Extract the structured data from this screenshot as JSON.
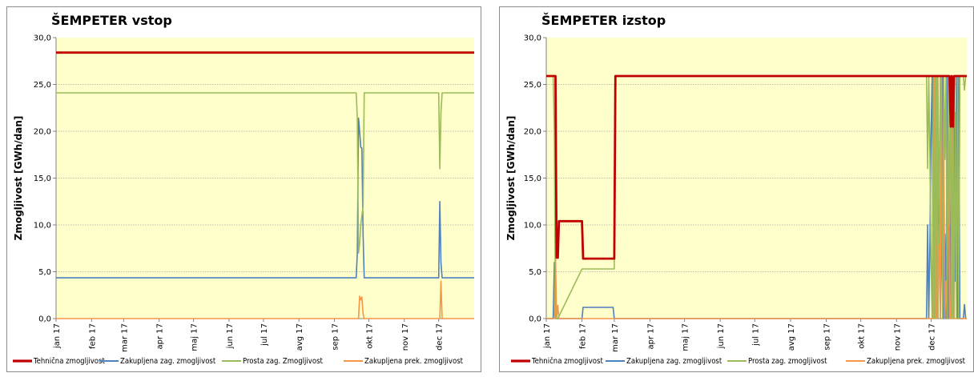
{
  "chart_data": [
    {
      "type": "line",
      "title": "ŠEMPETER vstop",
      "xlabel": "",
      "ylabel": "Zmogljivost [GWh/dan]",
      "ylim": [
        0,
        30
      ],
      "yticks": [
        "0,0",
        "5,0",
        "10,0",
        "15,0",
        "20,0",
        "25,0",
        "30,0"
      ],
      "xlim": [
        0,
        365
      ],
      "xticks": [
        {
          "label": "jan 17",
          "x": 0
        },
        {
          "label": "feb 17",
          "x": 31
        },
        {
          "label": "mar 17",
          "x": 59
        },
        {
          "label": "apr 17",
          "x": 90
        },
        {
          "label": "maj 17",
          "x": 120
        },
        {
          "label": "jun 17",
          "x": 151
        },
        {
          "label": "jul 17",
          "x": 181
        },
        {
          "label": "avg 17",
          "x": 212
        },
        {
          "label": "sep 17",
          "x": 243
        },
        {
          "label": "okt 17",
          "x": 273
        },
        {
          "label": "nov 17",
          "x": 304
        },
        {
          "label": "dec 17",
          "x": 334
        }
      ],
      "grid": true,
      "background": "#ffffcc",
      "legend_position": "bottom",
      "series": [
        {
          "name": "Tehnična zmogljivost",
          "color": "#c00000",
          "width": 2.8,
          "x": [
            0,
            365
          ],
          "y": [
            28.4,
            28.4
          ]
        },
        {
          "name": "Zakupljena zag. zmogljivost",
          "color": "#4f81bd",
          "width": 1.6,
          "x": [
            0,
            262,
            263,
            264,
            265,
            266,
            267,
            268,
            269,
            270,
            334,
            335,
            336,
            337,
            338,
            365
          ],
          "y": [
            4.35,
            4.35,
            7,
            21.4,
            20,
            18.3,
            18.2,
            9,
            4.35,
            4.35,
            4.35,
            12.5,
            6,
            4.35,
            4.35,
            4.35
          ]
        },
        {
          "name": "Prosta zag. Zmogljivost",
          "color": "#9bbb59",
          "width": 1.6,
          "x": [
            0,
            262,
            263,
            264,
            265,
            266,
            267,
            268,
            269,
            270,
            334,
            335,
            336,
            337,
            338,
            365
          ],
          "y": [
            24.1,
            24.1,
            21.4,
            7.0,
            8.0,
            10.0,
            11.0,
            12.0,
            24.1,
            24.1,
            24.1,
            16,
            22,
            24.1,
            24.1,
            24.1
          ]
        },
        {
          "name": "Zakupljena prek. zmogljivost",
          "color": "#f79646",
          "width": 1.6,
          "x": [
            0,
            264,
            265,
            266,
            267,
            268,
            269,
            270,
            335,
            336,
            337,
            338,
            365
          ],
          "y": [
            0,
            0,
            2.4,
            2.0,
            2.3,
            0.5,
            0,
            0,
            0,
            4.0,
            0,
            0,
            0
          ]
        }
      ]
    },
    {
      "type": "line",
      "title": "ŠEMPETER izstop",
      "xlabel": "",
      "ylabel": "Zmogljivost [GWh/dan]",
      "ylim": [
        0,
        30
      ],
      "yticks": [
        "0,0",
        "5,0",
        "10,0",
        "15,0",
        "20,0",
        "25,0",
        "30,0"
      ],
      "xlim": [
        0,
        365
      ],
      "xticks": [
        {
          "label": "jan 17",
          "x": 0
        },
        {
          "label": "feb 17",
          "x": 31
        },
        {
          "label": "mar 17",
          "x": 59
        },
        {
          "label": "apr 17",
          "x": 90
        },
        {
          "label": "maj 17",
          "x": 120
        },
        {
          "label": "jun 17",
          "x": 151
        },
        {
          "label": "jul 17",
          "x": 181
        },
        {
          "label": "avg 17",
          "x": 212
        },
        {
          "label": "sep 17",
          "x": 243
        },
        {
          "label": "okt 17",
          "x": 273
        },
        {
          "label": "nov 17",
          "x": 304
        },
        {
          "label": "dec 17",
          "x": 334
        }
      ],
      "grid": true,
      "background": "#ffffcc",
      "legend_position": "bottom",
      "series": [
        {
          "name": "Tehnična zmogljivost",
          "color": "#c00000",
          "width": 2.8,
          "x": [
            0,
            8,
            9,
            10,
            11,
            12,
            31,
            32,
            58,
            59,
            60,
            350,
            351,
            352,
            353,
            354,
            355,
            365
          ],
          "y": [
            25.9,
            25.9,
            6.5,
            6.5,
            10.4,
            10.4,
            10.4,
            6.4,
            6.4,
            6.4,
            25.9,
            25.9,
            20.5,
            25.9,
            20.5,
            25.9,
            25.9,
            25.9
          ]
        },
        {
          "name": "Zakupljena zag. zmogljivost",
          "color": "#4f81bd",
          "width": 1.6,
          "x": [
            0,
            6,
            7,
            8,
            9,
            10,
            31,
            32,
            58,
            59,
            60,
            330,
            331,
            332,
            333,
            334,
            335,
            336,
            337,
            338,
            339,
            340,
            341,
            342,
            343,
            344,
            345,
            346,
            347,
            348,
            349,
            350,
            351,
            352,
            353,
            354,
            355,
            356,
            357,
            358,
            359,
            360,
            361,
            362,
            363,
            364,
            365
          ],
          "y": [
            0,
            0,
            6,
            0,
            0,
            0,
            0,
            1.2,
            1.2,
            0,
            0,
            0,
            10,
            0,
            8.5,
            20,
            25.9,
            0,
            25.9,
            0,
            25.9,
            0,
            18,
            0,
            9,
            25.9,
            0,
            9,
            0,
            25.9,
            0,
            16,
            0,
            25.9,
            0,
            25.9,
            4,
            25.9,
            0,
            25.9,
            0,
            0,
            0,
            0,
            1.5,
            0,
            0
          ]
        },
        {
          "name": "Prosta zag. zmogljivost",
          "color": "#9bbb59",
          "width": 1.6,
          "x": [
            0,
            6,
            7,
            8,
            9,
            10,
            31,
            32,
            58,
            59,
            60,
            330,
            331,
            332,
            333,
            334,
            335,
            336,
            337,
            338,
            339,
            340,
            341,
            342,
            343,
            344,
            345,
            346,
            347,
            348,
            349,
            350,
            351,
            352,
            353,
            354,
            355,
            356,
            357,
            358,
            359,
            360,
            361,
            362,
            363,
            364,
            365
          ],
          "y": [
            25.9,
            25.9,
            20,
            0,
            0,
            0,
            5.3,
            5.3,
            5.3,
            5.3,
            25.9,
            25.9,
            16,
            25.9,
            17,
            6,
            0,
            25.9,
            0,
            25.9,
            0,
            25.9,
            8,
            25.9,
            17,
            0,
            25.9,
            17,
            25.9,
            0,
            25.9,
            10,
            25.9,
            0,
            25.9,
            0,
            22,
            0,
            25.9,
            0,
            25.9,
            25.9,
            25.9,
            25.9,
            24.4,
            25.9,
            25.9
          ]
        },
        {
          "name": "Zakupljena prek. zmogljivost",
          "color": "#f79646",
          "width": 1.6,
          "x": [
            0,
            7,
            8,
            9,
            10,
            11,
            12,
            13,
            336,
            337,
            338,
            339,
            340,
            341,
            342,
            343,
            344,
            345,
            346,
            347,
            348,
            349,
            350,
            351,
            352,
            353,
            354,
            355,
            356,
            357,
            358,
            359,
            360,
            365
          ],
          "y": [
            0,
            0,
            6.5,
            0,
            1.4,
            0,
            0,
            0,
            0,
            25.9,
            0,
            25.9,
            0,
            12,
            0,
            25.9,
            0,
            20,
            0,
            4,
            0,
            25.9,
            0,
            0,
            25.9,
            0,
            0,
            0,
            0,
            0,
            0,
            0,
            0,
            0
          ]
        }
      ]
    }
  ]
}
